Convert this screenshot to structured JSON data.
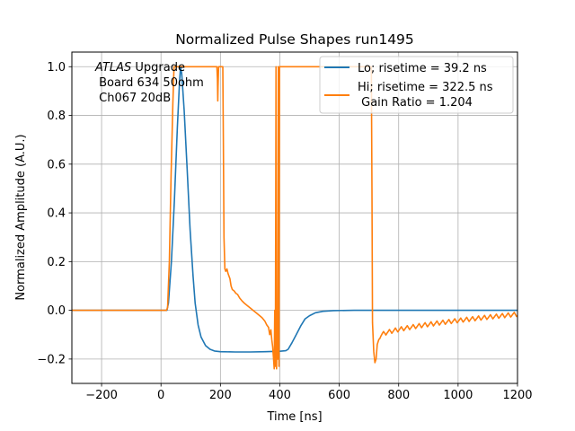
{
  "chart_data": {
    "type": "line",
    "title": "Normalized Pulse Shapes run1495",
    "xlabel": "Time [ns]",
    "ylabel": "Normalized Amplitude (A.U.)",
    "xlim": [
      -300,
      1200
    ],
    "ylim": [
      -0.3,
      1.06
    ],
    "xticks": [
      -200,
      0,
      200,
      400,
      600,
      800,
      1000,
      1200
    ],
    "xtick_labels": [
      "−200",
      "0",
      "200",
      "400",
      "600",
      "800",
      "1000",
      "1200"
    ],
    "yticks": [
      -0.2,
      0.0,
      0.2,
      0.4,
      0.6,
      0.8,
      1.0
    ],
    "ytick_labels": [
      "−0.2",
      "0.0",
      "0.2",
      "0.4",
      "0.6",
      "0.8",
      "1.0"
    ],
    "grid": true,
    "legend_position": "top-right",
    "annotation": {
      "lines": [
        "ATLAS Upgrade",
        " Board 634 50ohm",
        " Ch067 20dB"
      ],
      "italic_word": "ATLAS",
      "position": "top-left"
    },
    "series": [
      {
        "name": "Lo",
        "legend": [
          "Lo; risetime = 39.2 ns"
        ],
        "color": "#1f77b4",
        "x": [
          -300,
          0,
          20,
          25,
          35,
          45,
          55,
          62,
          66,
          70,
          78,
          88,
          98,
          108,
          115,
          125,
          135,
          150,
          165,
          180,
          200,
          250,
          300,
          350,
          400,
          420,
          428,
          440,
          455,
          470,
          485,
          500,
          520,
          545,
          580,
          650,
          800,
          1000,
          1200
        ],
        "y": [
          0.0,
          0.0,
          0.0,
          0.03,
          0.2,
          0.45,
          0.75,
          0.93,
          1.0,
          0.97,
          0.82,
          0.58,
          0.33,
          0.14,
          0.03,
          -0.06,
          -0.11,
          -0.145,
          -0.16,
          -0.167,
          -0.17,
          -0.171,
          -0.171,
          -0.17,
          -0.168,
          -0.166,
          -0.16,
          -0.135,
          -0.1,
          -0.065,
          -0.035,
          -0.022,
          -0.01,
          -0.004,
          -0.001,
          0.0,
          0.0,
          0.0,
          0.0
        ]
      },
      {
        "name": "Hi",
        "legend": [
          "Hi; risetime = 322.5 ns",
          " Gain Ratio = 1.204"
        ],
        "color": "#ff7f0e",
        "x": [
          -300,
          -100,
          0,
          18,
          22,
          28,
          34,
          40,
          44,
          100,
          150,
          188,
          190,
          191,
          192,
          194,
          200,
          208,
          210,
          212,
          215,
          218,
          222,
          226,
          232,
          236,
          240,
          246,
          252,
          258,
          265,
          272,
          280,
          290,
          300,
          310,
          320,
          330,
          340,
          350,
          356,
          362,
          366,
          370,
          373,
          376,
          379,
          381,
          383,
          385,
          387,
          389,
          391,
          393,
          395,
          397,
          399,
          401,
          450,
          500,
          550,
          600,
          650,
          700,
          708,
          710,
          712,
          716,
          720,
          724,
          728,
          733,
          737
        ],
        "y": [
          0.0,
          0.0,
          0.0,
          0.0,
          0.01,
          0.2,
          0.55,
          0.85,
          1.0,
          1.0,
          1.0,
          1.0,
          0.95,
          0.86,
          0.92,
          1.0,
          1.0,
          1.0,
          0.7,
          0.3,
          0.17,
          0.16,
          0.17,
          0.15,
          0.13,
          0.1,
          0.085,
          0.08,
          0.07,
          0.065,
          0.05,
          0.04,
          0.03,
          0.02,
          0.01,
          0.0,
          -0.01,
          -0.02,
          -0.03,
          -0.045,
          -0.06,
          -0.07,
          -0.1,
          -0.08,
          -0.12,
          -0.15,
          -0.2,
          -0.24,
          0.0,
          -0.23,
          1.0,
          -0.24,
          0.0,
          -0.2,
          1.0,
          -0.23,
          1.0,
          1.0,
          1.0,
          1.0,
          1.0,
          1.0,
          1.0,
          1.0,
          1.0,
          0.5,
          -0.05,
          -0.17,
          -0.215,
          -0.2,
          -0.14,
          -0.12,
          -0.115
        ]
      }
    ],
    "hi_tail": {
      "x_start": 737,
      "x_end": 1200,
      "y_start": -0.115,
      "y_end": -0.025,
      "ripple_period_ns": 20,
      "ripple_amplitude": 0.018
    }
  }
}
